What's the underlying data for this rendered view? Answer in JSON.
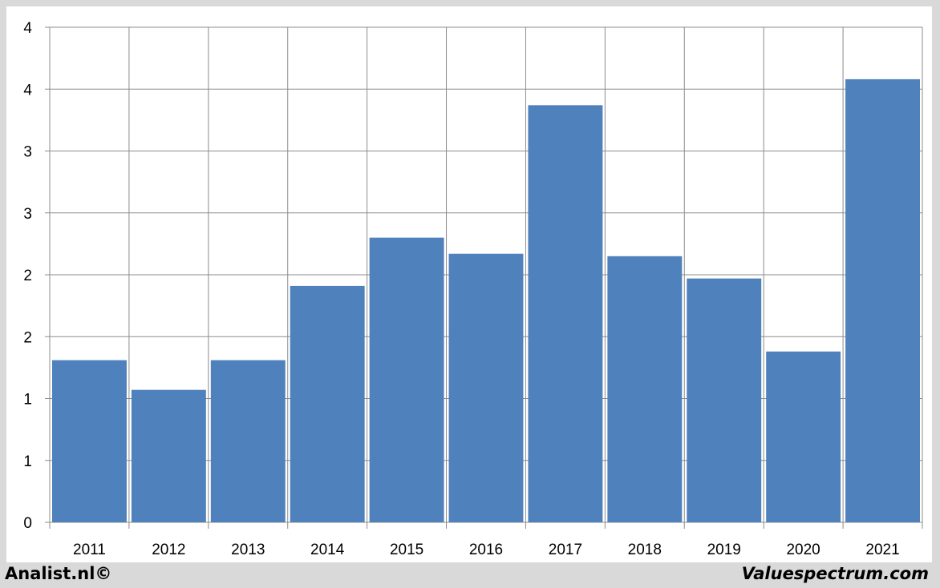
{
  "chart_data": {
    "type": "bar",
    "categories": [
      "2011",
      "2012",
      "2013",
      "2014",
      "2015",
      "2016",
      "2017",
      "2018",
      "2019",
      "2020",
      "2021"
    ],
    "values": [
      1.31,
      1.07,
      1.31,
      1.91,
      2.3,
      2.17,
      3.37,
      2.15,
      1.97,
      1.38,
      3.58
    ],
    "y_tick_labels": [
      "0",
      "1",
      "1",
      "2",
      "2",
      "3",
      "3",
      "4",
      "4"
    ],
    "ylim": [
      0,
      4
    ],
    "grid": true,
    "legend": "none",
    "bar_color": "#4f81bd",
    "title": "",
    "xlabel": "",
    "ylabel": ""
  },
  "footer": {
    "left": "Analist.nl©",
    "right": "Valuespectrum.com"
  }
}
